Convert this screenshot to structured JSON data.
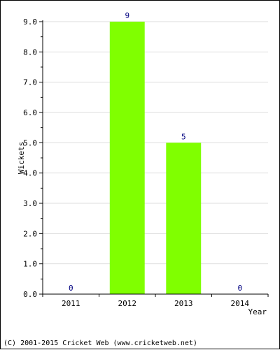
{
  "chart_data": {
    "type": "bar",
    "categories": [
      "2011",
      "2012",
      "2013",
      "2014"
    ],
    "values": [
      0,
      9,
      5,
      0
    ],
    "data_labels": [
      "0",
      "9",
      "5",
      "0"
    ],
    "ylabel": "Wickets",
    "xlabel": "Year",
    "ylim": [
      0,
      9
    ],
    "yticks": [
      "0.0",
      "1.0",
      "2.0",
      "3.0",
      "4.0",
      "5.0",
      "6.0",
      "7.0",
      "8.0",
      "9.0"
    ],
    "bar_color": "#80ff00",
    "label_color": "#000080",
    "grid": true
  },
  "footer": {
    "text": "(C) 2001-2015 Cricket Web (www.cricketweb.net)"
  }
}
